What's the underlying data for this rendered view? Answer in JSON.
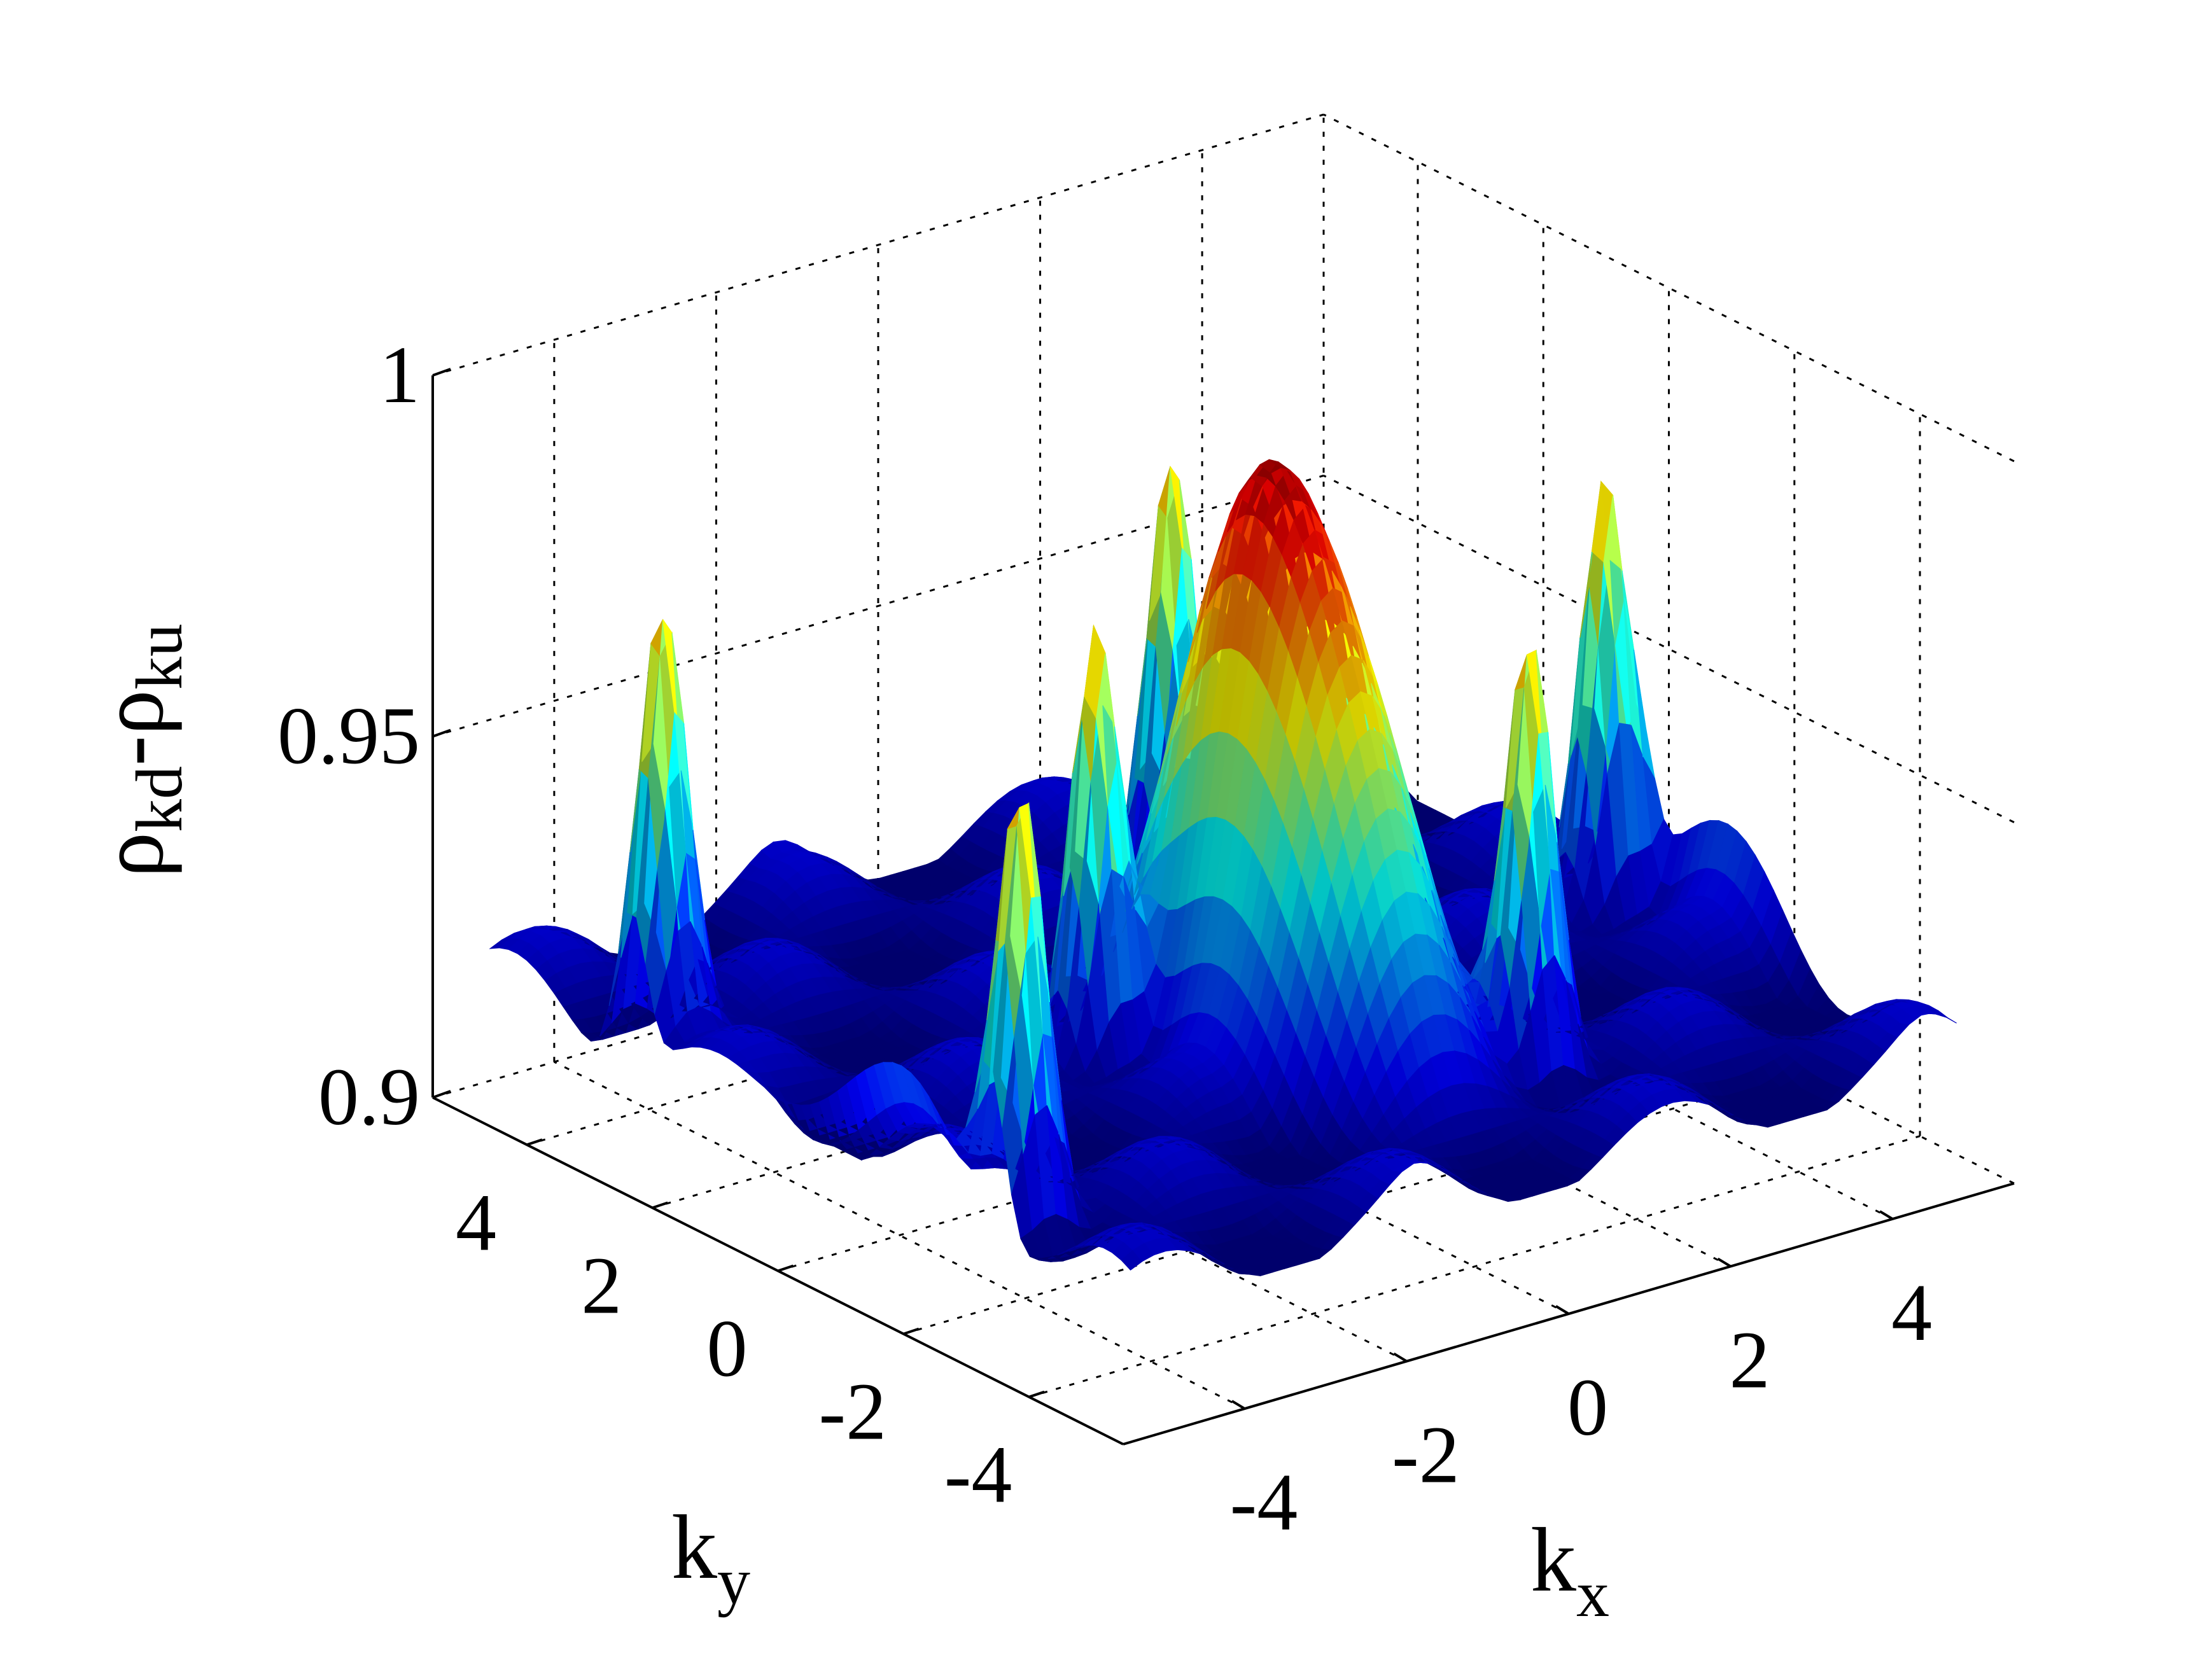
{
  "chart_data": {
    "type": "surface",
    "zlabel": {
      "base": "ρ",
      "sub1": "kd",
      "mid": "-ρ",
      "sub2": "ku"
    },
    "xlabel": {
      "base": "k",
      "sub": "x"
    },
    "ylabel": {
      "base": "k",
      "sub": "y"
    },
    "xlim": [
      -5.5,
      5.5
    ],
    "ylim": [
      -5.5,
      5.5
    ],
    "zlim": [
      0.9,
      1.0
    ],
    "x_ticks": [
      -4,
      -2,
      0,
      2,
      4
    ],
    "y_ticks": [
      -4,
      -2,
      0,
      2,
      4
    ],
    "z_ticks": [
      0.9,
      0.95,
      1.0
    ],
    "x_tick_labels": [
      "-4",
      "-2",
      "0",
      "2",
      "4"
    ],
    "y_tick_labels": [
      "-4",
      "-2",
      "0",
      "2",
      "4"
    ],
    "z_tick_labels": [
      "0.9",
      "0.95",
      "1"
    ],
    "grid": true,
    "colormap": "jet",
    "surface": {
      "description_of_shape": "periodic 2D lattice of broad peaks near 1.0 separated by narrow spikes and valleys near 0.92",
      "peak_max": 1.0,
      "trough_min": 0.915
    }
  }
}
